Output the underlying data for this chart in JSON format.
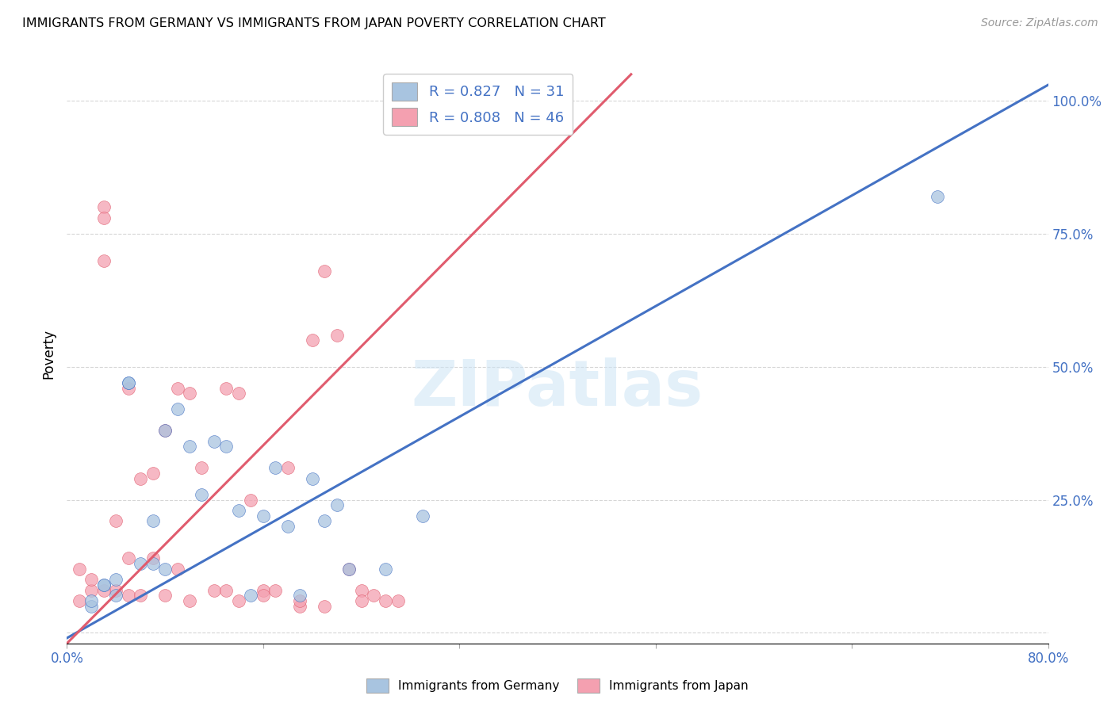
{
  "title": "IMMIGRANTS FROM GERMANY VS IMMIGRANTS FROM JAPAN POVERTY CORRELATION CHART",
  "source": "Source: ZipAtlas.com",
  "ylabel": "Poverty",
  "xlim": [
    0.0,
    0.8
  ],
  "ylim": [
    -0.02,
    1.07
  ],
  "ytick_positions": [
    0.0,
    0.25,
    0.5,
    0.75,
    1.0
  ],
  "ytick_labels": [
    "",
    "25.0%",
    "50.0%",
    "75.0%",
    "100.0%"
  ],
  "germany_color": "#a8c4e0",
  "japan_color": "#f4a0b0",
  "germany_line_color": "#4472C4",
  "japan_line_color": "#E05C6E",
  "germany_R": 0.827,
  "germany_N": 31,
  "japan_R": 0.808,
  "japan_N": 46,
  "watermark": "ZIPatlas",
  "background_color": "#ffffff",
  "germany_line_x0": 0.0,
  "germany_line_y0": -0.01,
  "germany_line_x1": 0.8,
  "germany_line_y1": 1.03,
  "japan_line_x0": 0.0,
  "japan_line_y0": -0.02,
  "japan_line_x1": 0.46,
  "japan_line_y1": 1.05,
  "germany_scatter_x": [
    0.71,
    0.05,
    0.05,
    0.08,
    0.09,
    0.1,
    0.12,
    0.13,
    0.14,
    0.16,
    0.17,
    0.2,
    0.22,
    0.03,
    0.03,
    0.04,
    0.06,
    0.07,
    0.07,
    0.08,
    0.11,
    0.15,
    0.19,
    0.21,
    0.23,
    0.26,
    0.29,
    0.02,
    0.02,
    0.04,
    0.18
  ],
  "germany_scatter_y": [
    0.82,
    0.47,
    0.47,
    0.38,
    0.42,
    0.35,
    0.36,
    0.35,
    0.23,
    0.22,
    0.31,
    0.29,
    0.24,
    0.09,
    0.09,
    0.1,
    0.13,
    0.13,
    0.21,
    0.12,
    0.26,
    0.07,
    0.07,
    0.21,
    0.12,
    0.12,
    0.22,
    0.05,
    0.06,
    0.07,
    0.2
  ],
  "japan_scatter_x": [
    0.03,
    0.03,
    0.03,
    0.04,
    0.04,
    0.05,
    0.05,
    0.06,
    0.07,
    0.07,
    0.08,
    0.09,
    0.09,
    0.1,
    0.11,
    0.12,
    0.13,
    0.14,
    0.14,
    0.15,
    0.16,
    0.17,
    0.18,
    0.19,
    0.2,
    0.21,
    0.22,
    0.23,
    0.24,
    0.25,
    0.27,
    0.01,
    0.01,
    0.02,
    0.02,
    0.03,
    0.05,
    0.06,
    0.08,
    0.1,
    0.13,
    0.16,
    0.19,
    0.21,
    0.24,
    0.26
  ],
  "japan_scatter_y": [
    0.8,
    0.7,
    0.78,
    0.08,
    0.21,
    0.14,
    0.46,
    0.29,
    0.14,
    0.3,
    0.38,
    0.46,
    0.12,
    0.45,
    0.31,
    0.08,
    0.46,
    0.06,
    0.45,
    0.25,
    0.08,
    0.08,
    0.31,
    0.05,
    0.55,
    0.68,
    0.56,
    0.12,
    0.08,
    0.07,
    0.06,
    0.06,
    0.12,
    0.08,
    0.1,
    0.08,
    0.07,
    0.07,
    0.07,
    0.06,
    0.08,
    0.07,
    0.06,
    0.05,
    0.06,
    0.06
  ],
  "germany_marker_size": 130,
  "japan_marker_size": 130
}
